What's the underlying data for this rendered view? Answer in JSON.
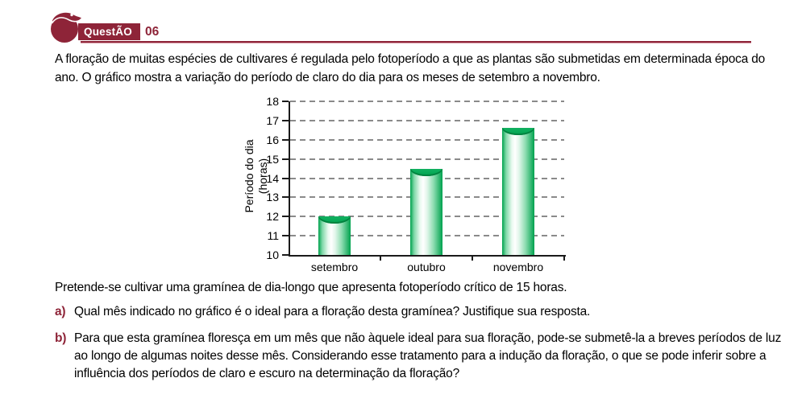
{
  "header": {
    "badge_label": "QuestÃO",
    "number": "06"
  },
  "intro": {
    "text": "A floração de muitas espécies de cultivares é regulada pelo fotoperíodo a que as plantas são submetidas em determinada época do ano. O gráfico mostra a variação do período de claro do dia para os meses de setembro a novembro."
  },
  "chart_data": {
    "type": "bar",
    "title": "",
    "categories": [
      "setembro",
      "outubro",
      "novembro"
    ],
    "values": [
      12,
      14.5,
      16.6
    ],
    "xlabel": "",
    "ylabel": "Período do dia",
    "ylabel_unit": "(horas)",
    "ylim": [
      10,
      18
    ],
    "ytick_step": 1,
    "grid": "horizontal-dashed",
    "grid_color": "#8a8a8a",
    "legend": "none",
    "bar_color": "#00a551",
    "bar_style": "glossy-cylinder"
  },
  "body": {
    "paragraph": "Pretende-se cultivar uma gramínea de dia-longo que apresenta fotoperíodo crítico de 15 horas.",
    "items": [
      {
        "label": "a)",
        "text": "Qual mês indicado no gráfico é o ideal para a floração desta gramínea? Justifique sua resposta."
      },
      {
        "label": "b)",
        "text": "Para que esta gramínea floresça em um mês que não àquele ideal para sua floração, pode-se submetê-la a breves períodos de luz ao longo de algumas noites desse mês. Considerando esse tratamento para a indução da floração, o que se pode inferir sobre a influência dos períodos de claro e escuro na determinação da floração?"
      }
    ]
  },
  "colors": {
    "accent_maroon": "#8e2438",
    "bar_green": "#00a551",
    "grid_gray": "#8a8a8a"
  }
}
